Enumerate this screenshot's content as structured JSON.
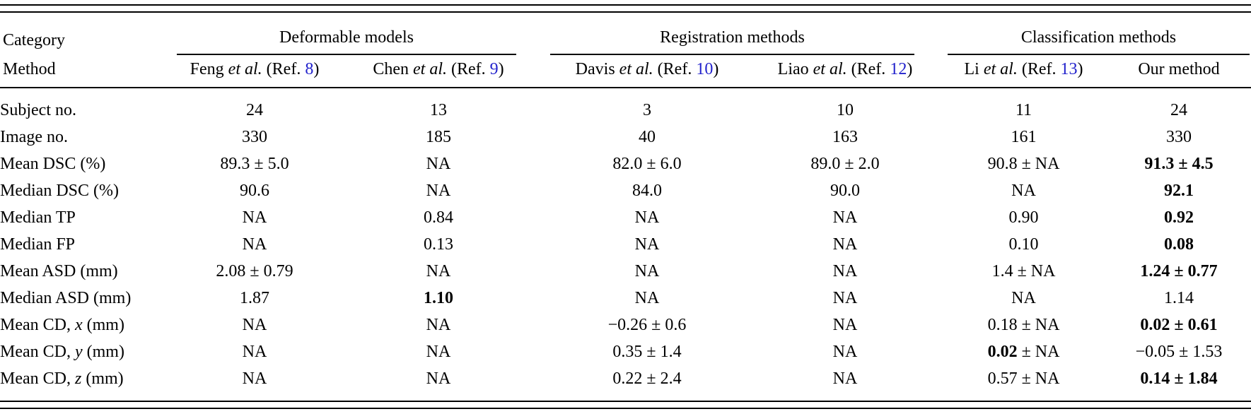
{
  "colors": {
    "background": "#ffffff",
    "text": "#000000",
    "ref_link_blue": "#2222cc"
  },
  "table": {
    "corner": {
      "line1": "Category",
      "line2": "Method"
    },
    "groups": [
      {
        "label": "Deformable models"
      },
      {
        "label": "Registration methods"
      },
      {
        "label": "Classification methods"
      }
    ],
    "methods": [
      {
        "name": "Feng",
        "etal": "et al.",
        "ref_prefix": "(Ref.",
        "ref": "8",
        "ref_close": ")"
      },
      {
        "name": "Chen",
        "etal": "et al.",
        "ref_prefix": "(Ref.",
        "ref": "9",
        "ref_close": ")"
      },
      {
        "name": "Davis",
        "etal": "et al.",
        "ref_prefix": "(Ref.",
        "ref": "10",
        "ref_close": ")"
      },
      {
        "name": "Liao",
        "etal": "et al.",
        "ref_prefix": "(Ref.",
        "ref": "12",
        "ref_close": ")"
      },
      {
        "name": "Li",
        "etal": "et al.",
        "ref_prefix": "(Ref.",
        "ref": "13",
        "ref_close": ")"
      },
      {
        "name": "Our method"
      }
    ],
    "rows": [
      {
        "label": {
          "pre": "Subject no."
        },
        "cells": [
          {
            "pre": "24"
          },
          {
            "pre": "13"
          },
          {
            "pre": "3"
          },
          {
            "pre": "10"
          },
          {
            "pre": "11"
          },
          {
            "pre": "24"
          }
        ]
      },
      {
        "label": {
          "pre": "Image no."
        },
        "cells": [
          {
            "pre": "330"
          },
          {
            "pre": "185"
          },
          {
            "pre": "40"
          },
          {
            "pre": "163"
          },
          {
            "pre": "161"
          },
          {
            "pre": "330"
          }
        ]
      },
      {
        "label": {
          "pre": "Mean DSC (%)"
        },
        "cells": [
          {
            "pre": "89.3 ± 5.0"
          },
          {
            "pre": "NA"
          },
          {
            "pre": "82.0 ± 6.0"
          },
          {
            "pre": "89.0 ± 2.0"
          },
          {
            "pre": "90.8 ± NA"
          },
          {
            "bold": "91.3 ± 4.5"
          }
        ]
      },
      {
        "label": {
          "pre": "Median DSC (%)"
        },
        "cells": [
          {
            "pre": "90.6"
          },
          {
            "pre": "NA"
          },
          {
            "pre": "84.0"
          },
          {
            "pre": "90.0"
          },
          {
            "pre": "NA"
          },
          {
            "bold": "92.1"
          }
        ]
      },
      {
        "label": {
          "pre": "Median TP"
        },
        "cells": [
          {
            "pre": "NA"
          },
          {
            "pre": "0.84"
          },
          {
            "pre": "NA"
          },
          {
            "pre": "NA"
          },
          {
            "pre": "0.90"
          },
          {
            "bold": "0.92"
          }
        ]
      },
      {
        "label": {
          "pre": "Median FP"
        },
        "cells": [
          {
            "pre": "NA"
          },
          {
            "pre": "0.13"
          },
          {
            "pre": "NA"
          },
          {
            "pre": "NA"
          },
          {
            "pre": "0.10"
          },
          {
            "bold": "0.08"
          }
        ]
      },
      {
        "label": {
          "pre": "Mean ASD (mm)"
        },
        "cells": [
          {
            "pre": "2.08 ± 0.79"
          },
          {
            "pre": "NA"
          },
          {
            "pre": "NA"
          },
          {
            "pre": "NA"
          },
          {
            "pre": "1.4 ± NA"
          },
          {
            "bold": "1.24 ± 0.77"
          }
        ]
      },
      {
        "label": {
          "pre": "Median ASD (mm)"
        },
        "cells": [
          {
            "pre": "1.87"
          },
          {
            "bold": "1.10"
          },
          {
            "pre": "NA"
          },
          {
            "pre": "NA"
          },
          {
            "pre": "NA"
          },
          {
            "pre": "1.14"
          }
        ]
      },
      {
        "label": {
          "pre": "Mean CD, ",
          "it": "x",
          "post": " (mm)"
        },
        "cells": [
          {
            "pre": "NA"
          },
          {
            "pre": "NA"
          },
          {
            "pre": "−0.26 ± 0.6"
          },
          {
            "pre": "NA"
          },
          {
            "pre": "0.18 ± NA"
          },
          {
            "bold": "0.02 ± 0.61"
          }
        ]
      },
      {
        "label": {
          "pre": "Mean CD, ",
          "it": "y",
          "post": " (mm)"
        },
        "cells": [
          {
            "pre": "NA"
          },
          {
            "pre": "NA"
          },
          {
            "pre": "0.35 ± 1.4"
          },
          {
            "pre": "NA"
          },
          {
            "bold": "0.02",
            "post": " ± NA"
          },
          {
            "pre": "−0.05 ± 1.53"
          }
        ]
      },
      {
        "label": {
          "pre": "Mean CD, ",
          "it": "z",
          "post": " (mm)"
        },
        "cells": [
          {
            "pre": "NA"
          },
          {
            "pre": "NA"
          },
          {
            "pre": "0.22 ± 2.4"
          },
          {
            "pre": "NA"
          },
          {
            "pre": "0.57 ± NA"
          },
          {
            "bold": "0.14 ± 1.84"
          }
        ]
      }
    ]
  }
}
